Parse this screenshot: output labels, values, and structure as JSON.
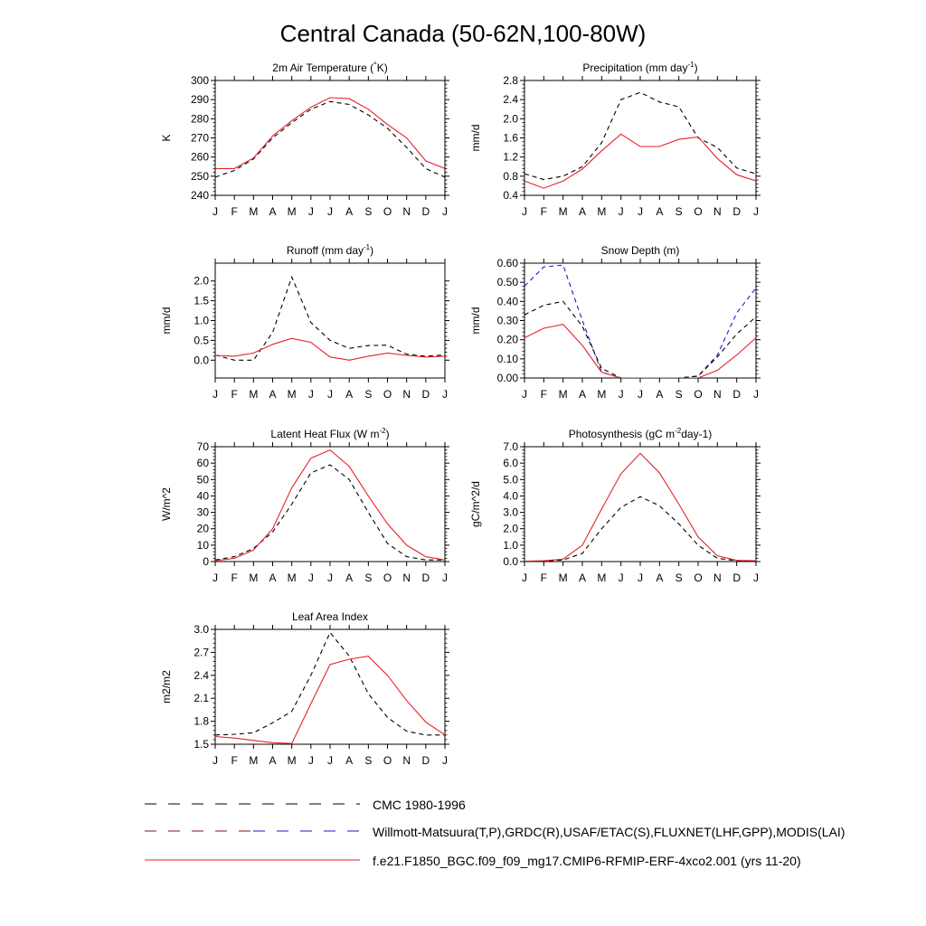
{
  "figure_title": "Central Canada (50-62N,100-80W)",
  "colors": {
    "model": "#e8212a",
    "obs": "#000000",
    "obs_alt": "#1a1acc"
  },
  "legend": [
    {
      "label": "CMC 1980-1996",
      "style": "dash-black"
    },
    {
      "label": "Willmott-Matsuura(T,P),GRDC(R),USAF/ETAC(S),FLUXNET(LHF,GPP),MODIS(LAI)",
      "style": "dash-mixed"
    },
    {
      "label": "f.e21.F1850_BGC.f09_f09_mg17.CMIP6-RFMIP-ERF-4xco2.001 (yrs 11-20)",
      "style": "solid-red"
    }
  ],
  "chart_data": [
    {
      "id": "temp",
      "type": "line",
      "title": "2m Air Temperature (°K)",
      "ylabel": "K",
      "ylim": [
        240,
        300
      ],
      "yticks": [
        "240",
        "250",
        "260",
        "270",
        "280",
        "290",
        "300"
      ],
      "months": [
        "J",
        "F",
        "M",
        "A",
        "M",
        "J",
        "J",
        "A",
        "S",
        "O",
        "N",
        "D",
        "J"
      ],
      "series": [
        {
          "name": "CMC 1980-1996",
          "style": "dash",
          "color": "#000000",
          "values": [
            249.5,
            253,
            259,
            270,
            278,
            285,
            289,
            287.5,
            282,
            275,
            265,
            254,
            249.5
          ]
        },
        {
          "name": "model",
          "style": "solid",
          "color": "#e8212a",
          "values": [
            254,
            254,
            259.5,
            271,
            279,
            286,
            291,
            290.5,
            285,
            277,
            270,
            258,
            254
          ]
        }
      ]
    },
    {
      "id": "precip",
      "type": "line",
      "title": "Precipitation (mm day-1)",
      "ylabel": "mm/d",
      "ylim": [
        0.4,
        2.8
      ],
      "yticks": [
        "0.4",
        "0.8",
        "1.2",
        "1.6",
        "2.0",
        "2.4",
        "2.8"
      ],
      "months": [
        "J",
        "F",
        "M",
        "A",
        "M",
        "J",
        "J",
        "A",
        "S",
        "O",
        "N",
        "D",
        "J"
      ],
      "series": [
        {
          "name": "Willmott-Matsuura",
          "style": "dash",
          "color": "#000000",
          "values": [
            0.85,
            0.73,
            0.8,
            1.0,
            1.5,
            2.4,
            2.55,
            2.35,
            2.25,
            1.6,
            1.4,
            0.97,
            0.85
          ]
        },
        {
          "name": "model",
          "style": "solid",
          "color": "#e8212a",
          "values": [
            0.7,
            0.55,
            0.7,
            0.95,
            1.33,
            1.68,
            1.42,
            1.42,
            1.57,
            1.62,
            1.17,
            0.83,
            0.7
          ]
        }
      ]
    },
    {
      "id": "runoff",
      "type": "line",
      "title": "Runoff (mm day-1)",
      "ylabel": "mm/d",
      "ylim": [
        -0.45,
        2.45
      ],
      "yticks": [
        "0.0",
        "0.5",
        "1.0",
        "1.5",
        "2.0"
      ],
      "ytick_values": [
        0,
        0.5,
        1.0,
        1.5,
        2.0
      ],
      "months": [
        "J",
        "F",
        "M",
        "A",
        "M",
        "J",
        "J",
        "A",
        "S",
        "O",
        "N",
        "D",
        "J"
      ],
      "series": [
        {
          "name": "GRDC",
          "style": "dash",
          "color": "#000000",
          "values": [
            0.13,
            0.0,
            0.0,
            0.7,
            2.1,
            0.95,
            0.5,
            0.3,
            0.37,
            0.38,
            0.15,
            0.1,
            0.13
          ]
        },
        {
          "name": "model",
          "style": "solid",
          "color": "#e8212a",
          "values": [
            0.12,
            0.1,
            0.18,
            0.4,
            0.55,
            0.45,
            0.08,
            0.0,
            0.1,
            0.18,
            0.12,
            0.08,
            0.1
          ]
        }
      ]
    },
    {
      "id": "snow",
      "type": "line",
      "title": "Snow Depth (m)",
      "ylabel": "mm/d",
      "ylim": [
        0,
        0.6
      ],
      "yticks": [
        "0.00",
        "0.10",
        "0.20",
        "0.30",
        "0.40",
        "0.50",
        "0.60"
      ],
      "months": [
        "J",
        "F",
        "M",
        "A",
        "M",
        "J",
        "J",
        "A",
        "S",
        "O",
        "N",
        "D",
        "J"
      ],
      "series": [
        {
          "name": "USAF/ETAC",
          "style": "dash",
          "color": "#1a1acc",
          "values": [
            0.48,
            0.58,
            0.59,
            0.3,
            0.03,
            0.0,
            0.0,
            0.0,
            0.0,
            0.01,
            0.12,
            0.34,
            0.47
          ]
        },
        {
          "name": "CMC 1980-1996",
          "style": "dash",
          "color": "#000000",
          "values": [
            0.33,
            0.38,
            0.4,
            0.27,
            0.05,
            0.0,
            0.0,
            0.0,
            0.0,
            0.01,
            0.11,
            0.23,
            0.32
          ]
        },
        {
          "name": "model",
          "style": "solid",
          "color": "#e8212a",
          "values": [
            0.21,
            0.26,
            0.28,
            0.17,
            0.03,
            0.0,
            0.0,
            0.0,
            0.0,
            0.0,
            0.04,
            0.12,
            0.21
          ]
        }
      ]
    },
    {
      "id": "lhf",
      "type": "line",
      "title": "Latent Heat Flux (W m-2)",
      "ylabel": "W/m^2",
      "ylim": [
        0,
        70
      ],
      "yticks": [
        "0",
        "10",
        "20",
        "30",
        "40",
        "50",
        "60",
        "70"
      ],
      "months": [
        "J",
        "F",
        "M",
        "A",
        "M",
        "J",
        "J",
        "A",
        "S",
        "O",
        "N",
        "D",
        "J"
      ],
      "series": [
        {
          "name": "FLUXNET",
          "style": "dash",
          "color": "#000000",
          "values": [
            1,
            3,
            8,
            18,
            35,
            54,
            59,
            50,
            30,
            11,
            3,
            1,
            1
          ]
        },
        {
          "name": "model",
          "style": "solid",
          "color": "#e8212a",
          "values": [
            0.5,
            2,
            7,
            20,
            45,
            63,
            68,
            58,
            40,
            23,
            10,
            3,
            1
          ]
        }
      ]
    },
    {
      "id": "gpp",
      "type": "line",
      "title": "Photosynthesis (gC m-2day-1)",
      "ylabel": "gC/m^2/d",
      "ylim": [
        0,
        7
      ],
      "yticks": [
        "0.0",
        "1.0",
        "2.0",
        "3.0",
        "4.0",
        "5.0",
        "6.0",
        "7.0"
      ],
      "months": [
        "J",
        "F",
        "M",
        "A",
        "M",
        "J",
        "J",
        "A",
        "S",
        "O",
        "N",
        "D",
        "J"
      ],
      "series": [
        {
          "name": "FLUXNET",
          "style": "dash",
          "color": "#000000",
          "values": [
            0.0,
            0.03,
            0.1,
            0.5,
            2.0,
            3.3,
            3.95,
            3.4,
            2.3,
            1.0,
            0.2,
            0.05,
            0.0
          ]
        },
        {
          "name": "model",
          "style": "solid",
          "color": "#e8212a",
          "values": [
            0.03,
            0.05,
            0.15,
            1.0,
            3.2,
            5.35,
            6.6,
            5.4,
            3.5,
            1.5,
            0.35,
            0.07,
            0.05
          ]
        }
      ]
    },
    {
      "id": "lai",
      "type": "line",
      "title": "Leaf Area Index",
      "ylabel": "m2/m2",
      "ylim": [
        1.5,
        3.0
      ],
      "yticks": [
        "1.5",
        "1.8",
        "2.1",
        "2.4",
        "2.7",
        "3.0"
      ],
      "months": [
        "J",
        "F",
        "M",
        "A",
        "M",
        "J",
        "J",
        "A",
        "S",
        "O",
        "N",
        "D",
        "J"
      ],
      "series": [
        {
          "name": "MODIS",
          "style": "dash",
          "color": "#000000",
          "values": [
            1.62,
            1.63,
            1.65,
            1.78,
            1.93,
            2.4,
            2.96,
            2.65,
            2.16,
            1.85,
            1.67,
            1.62,
            1.62
          ]
        },
        {
          "name": "model",
          "style": "solid",
          "color": "#e8212a",
          "values": [
            1.6,
            1.58,
            1.55,
            1.52,
            1.51,
            2.03,
            2.54,
            2.61,
            2.65,
            2.4,
            2.07,
            1.79,
            1.62
          ]
        }
      ]
    }
  ]
}
